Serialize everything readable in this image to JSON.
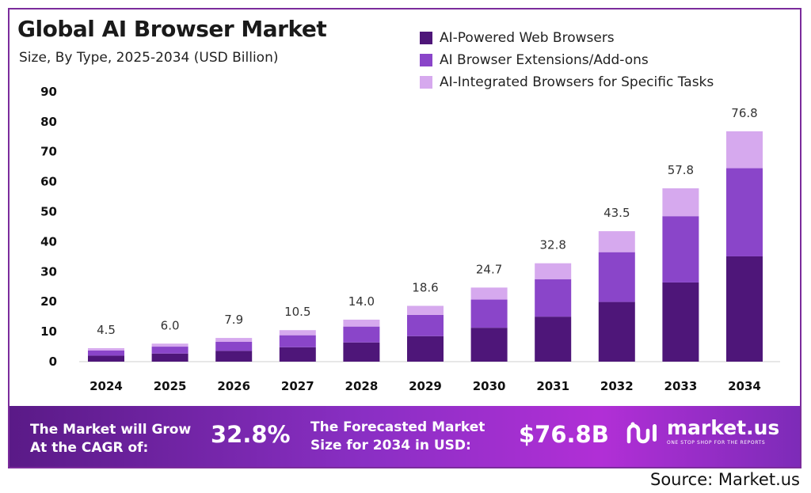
{
  "chart_data": {
    "type": "bar",
    "stacked": true,
    "title": "Global AI Browser Market",
    "subtitle": "Size, By Type, 2025-2034 (USD Billion)",
    "categories": [
      "2024",
      "2025",
      "2026",
      "2027",
      "2028",
      "2029",
      "2030",
      "2031",
      "2032",
      "2033",
      "2034"
    ],
    "series": [
      {
        "name": "AI-Powered Web Browsers",
        "color": "#4e1679",
        "values": [
          2.0,
          2.7,
          3.6,
          4.8,
          6.4,
          8.5,
          11.3,
          15.0,
          19.9,
          26.4,
          35.1
        ]
      },
      {
        "name": "AI Browser Extensions/Add-ons",
        "color": "#8a45c9",
        "values": [
          1.7,
          2.3,
          3.0,
          4.0,
          5.3,
          7.1,
          9.4,
          12.5,
          16.6,
          22.1,
          29.4
        ]
      },
      {
        "name": "AI-Integrated Browsers for Specific Tasks",
        "color": "#d6a9ee",
        "values": [
          0.8,
          1.0,
          1.3,
          1.7,
          2.3,
          3.0,
          4.0,
          5.3,
          7.0,
          9.3,
          12.3
        ]
      }
    ],
    "totals": [
      "4.5",
      "6.0",
      "7.9",
      "10.5",
      "14.0",
      "18.6",
      "24.7",
      "32.8",
      "43.5",
      "57.8",
      "76.8"
    ],
    "ylim": [
      0,
      90
    ],
    "yticks": [
      "0",
      "10",
      "20",
      "30",
      "40",
      "50",
      "60",
      "70",
      "80",
      "90"
    ],
    "xlabel": "",
    "ylabel": "",
    "legend": "top-right",
    "grid": false
  },
  "banner": {
    "cagr_label_line1": "The Market will Grow",
    "cagr_label_line2": "At the CAGR of:",
    "cagr_value": "32.8%",
    "forecast_label_line1": "The Forecasted Market",
    "forecast_label_line2": "Size for 2034 in USD:",
    "forecast_value": "$76.8B",
    "logo_name": "market.us",
    "logo_tagline": "ONE STOP SHOP FOR THE REPORTS"
  },
  "source": "Source: Market.us"
}
